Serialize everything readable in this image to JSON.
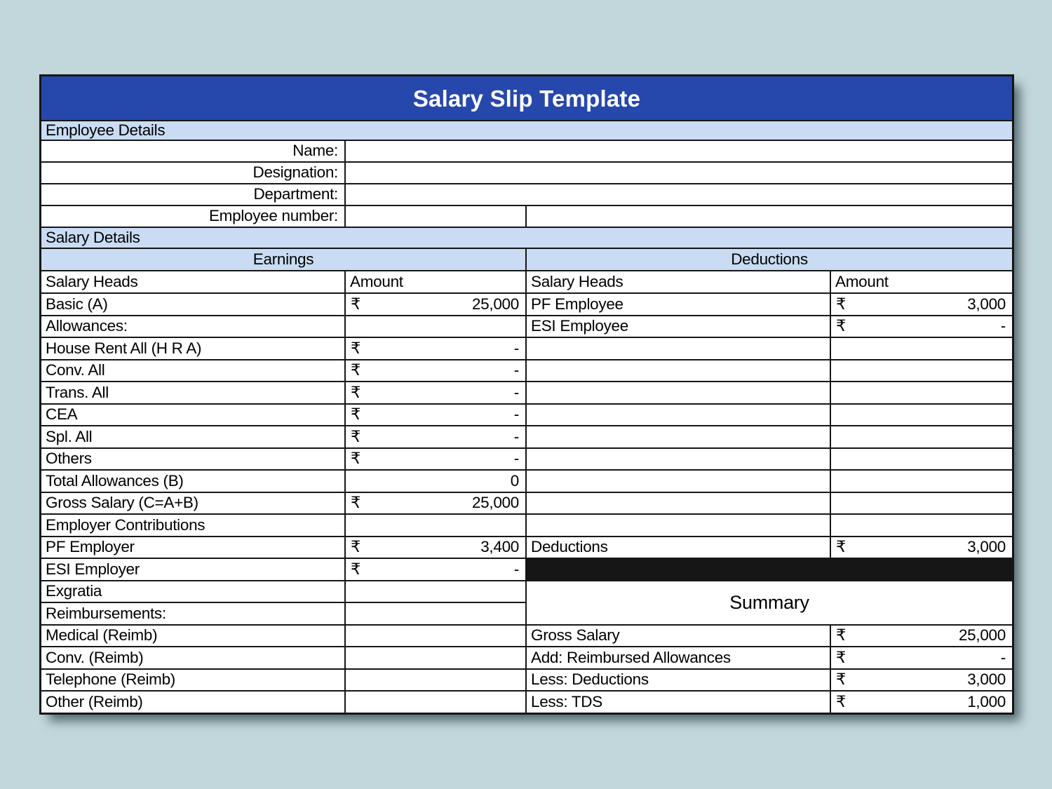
{
  "page": {
    "title": "Salary Slip Template"
  },
  "colors": {
    "title_bar": "#2647ac",
    "section_header": "#c9dcf3",
    "page_background": "#c2d7db",
    "gridline": "#161616"
  },
  "currency_symbol": "₹",
  "employee_details": {
    "heading": "Employee Details",
    "fields": [
      {
        "label": "Name:",
        "value": ""
      },
      {
        "label": "Designation:",
        "value": ""
      },
      {
        "label": "Department:",
        "value": ""
      },
      {
        "label": "Employee number:",
        "value": "",
        "value2": ""
      }
    ]
  },
  "salary_details": {
    "heading": "Salary Details",
    "earnings_heading": "Earnings",
    "deductions_heading": "Deductions",
    "salary_heads_header": "Salary Heads",
    "amount_header": "Amount"
  },
  "earnings": {
    "rows": [
      {
        "label": "Basic (A)",
        "currency": "₹",
        "amount": "25,000"
      },
      {
        "label": "Allowances:",
        "currency": "",
        "amount": ""
      },
      {
        "label": "House Rent All (H R A)",
        "currency": "₹",
        "amount": "-"
      },
      {
        "label": "Conv. All",
        "currency": "₹",
        "amount": "-"
      },
      {
        "label": "Trans. All",
        "currency": "₹",
        "amount": "-"
      },
      {
        "label": "CEA",
        "currency": "₹",
        "amount": "-"
      },
      {
        "label": "Spl. All",
        "currency": "₹",
        "amount": "-"
      },
      {
        "label": "Others",
        "currency": "₹",
        "amount": "-"
      },
      {
        "label": "Total Allowances (B)",
        "currency": "",
        "amount": "0"
      },
      {
        "label": "Gross Salary (C=A+B)",
        "currency": "₹",
        "amount": "25,000"
      },
      {
        "label": "Employer Contributions",
        "currency": "",
        "amount": ""
      },
      {
        "label": "PF Employer",
        "currency": "₹",
        "amount": "3,400"
      },
      {
        "label": "ESI Employer",
        "currency": "₹",
        "amount": "-"
      },
      {
        "label": "Exgratia",
        "currency": "",
        "amount": ""
      },
      {
        "label": "Reimbursements:",
        "currency": "",
        "amount": ""
      },
      {
        "label": "Medical (Reimb)",
        "currency": "",
        "amount": ""
      },
      {
        "label": "Conv. (Reimb)",
        "currency": "",
        "amount": ""
      },
      {
        "label": "Telephone (Reimb)",
        "currency": "",
        "amount": ""
      },
      {
        "label": "Other (Reimb)",
        "currency": "",
        "amount": ""
      }
    ]
  },
  "deductions": {
    "rows": [
      {
        "label": "PF Employee",
        "currency": "₹",
        "amount": "3,000"
      },
      {
        "label": "ESI Employee",
        "currency": "₹",
        "amount": "-"
      },
      {
        "label": "Deductions",
        "currency": "₹",
        "amount": "3,000"
      }
    ]
  },
  "summary": {
    "heading": "Summary",
    "rows": [
      {
        "label": "Gross Salary",
        "currency": "₹",
        "amount": "25,000"
      },
      {
        "label": "Add: Reimbursed Allowances",
        "currency": "₹",
        "amount": "-"
      },
      {
        "label": "Less: Deductions",
        "currency": "₹",
        "amount": "3,000"
      },
      {
        "label": "Less: TDS",
        "currency": "₹",
        "amount": "1,000"
      }
    ]
  }
}
